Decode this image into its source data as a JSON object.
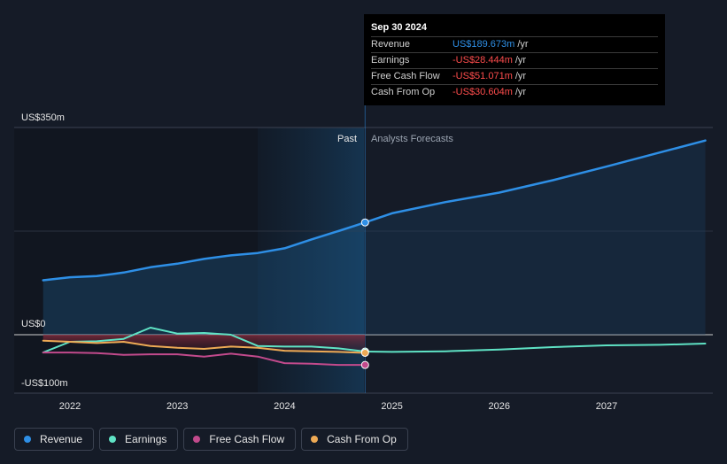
{
  "chart_data": {
    "type": "line",
    "y_unit_labels": [
      "US$350m",
      "US$0",
      "-US$100m"
    ],
    "ylim": [
      -100,
      350
    ],
    "x_ticks": [
      "2022",
      "2023",
      "2024",
      "2025",
      "2026",
      "2027"
    ],
    "region_labels": {
      "past": "Past",
      "forecast": "Analysts Forecasts"
    },
    "divider_x": 2024.75,
    "series": [
      {
        "name": "Revenue",
        "color": "#2e8fe6",
        "points": [
          [
            2021.75,
            92
          ],
          [
            2022.0,
            97
          ],
          [
            2022.25,
            99
          ],
          [
            2022.5,
            105
          ],
          [
            2022.75,
            114
          ],
          [
            2023.0,
            120
          ],
          [
            2023.25,
            128
          ],
          [
            2023.5,
            134
          ],
          [
            2023.75,
            138
          ],
          [
            2024.0,
            146
          ],
          [
            2024.25,
            161
          ],
          [
            2024.5,
            175
          ],
          [
            2024.75,
            189.673
          ]
        ]
      },
      {
        "name": "Revenue forecast",
        "color": "#2e8fe6",
        "points": [
          [
            2024.75,
            189.673
          ],
          [
            2025.0,
            205
          ],
          [
            2025.5,
            224
          ],
          [
            2026.0,
            240
          ],
          [
            2026.5,
            261
          ],
          [
            2027.0,
            284
          ],
          [
            2027.5,
            308
          ],
          [
            2027.92,
            328
          ]
        ]
      },
      {
        "name": "Earnings",
        "color": "#5fe3c5",
        "points": [
          [
            2021.75,
            -30
          ],
          [
            2022.0,
            -12
          ],
          [
            2022.25,
            -11
          ],
          [
            2022.5,
            -7
          ],
          [
            2022.75,
            12
          ],
          [
            2023.0,
            2
          ],
          [
            2023.25,
            3
          ],
          [
            2023.5,
            0
          ],
          [
            2023.75,
            -19
          ],
          [
            2024.0,
            -20
          ],
          [
            2024.25,
            -20
          ],
          [
            2024.5,
            -23
          ],
          [
            2024.75,
            -28.444
          ]
        ]
      },
      {
        "name": "Earnings forecast",
        "color": "#5fe3c5",
        "points": [
          [
            2024.75,
            -28.444
          ],
          [
            2025.0,
            -29
          ],
          [
            2025.5,
            -28
          ],
          [
            2026.0,
            -25
          ],
          [
            2026.5,
            -21
          ],
          [
            2027.0,
            -18
          ],
          [
            2027.5,
            -17
          ],
          [
            2027.92,
            -15
          ]
        ]
      },
      {
        "name": "Free Cash Flow",
        "color": "#c24a8c",
        "points": [
          [
            2021.75,
            -30
          ],
          [
            2022.0,
            -30
          ],
          [
            2022.25,
            -31
          ],
          [
            2022.5,
            -34
          ],
          [
            2022.75,
            -33
          ],
          [
            2023.0,
            -33
          ],
          [
            2023.25,
            -37
          ],
          [
            2023.5,
            -32
          ],
          [
            2023.75,
            -37
          ],
          [
            2024.0,
            -48
          ],
          [
            2024.25,
            -49
          ],
          [
            2024.5,
            -51
          ],
          [
            2024.75,
            -51.071
          ]
        ]
      },
      {
        "name": "Cash From Op",
        "color": "#eeaa55",
        "points": [
          [
            2021.75,
            -10
          ],
          [
            2022.0,
            -12
          ],
          [
            2022.25,
            -14
          ],
          [
            2022.5,
            -12
          ],
          [
            2022.75,
            -19
          ],
          [
            2023.0,
            -22
          ],
          [
            2023.25,
            -24
          ],
          [
            2023.5,
            -20
          ],
          [
            2023.75,
            -22
          ],
          [
            2024.0,
            -27
          ],
          [
            2024.25,
            -28
          ],
          [
            2024.5,
            -29
          ],
          [
            2024.75,
            -30.604
          ]
        ]
      }
    ]
  },
  "tooltip": {
    "date": "Sep 30 2024",
    "rows": [
      {
        "label": "Revenue",
        "value": "US$189.673m",
        "unit": "/yr",
        "color": "#2e8fe6"
      },
      {
        "label": "Earnings",
        "value": "-US$28.444m",
        "unit": "/yr",
        "color": "#ff4d4d"
      },
      {
        "label": "Free Cash Flow",
        "value": "-US$51.071m",
        "unit": "/yr",
        "color": "#ff4d4d"
      },
      {
        "label": "Cash From Op",
        "value": "-US$30.604m",
        "unit": "/yr",
        "color": "#ff4d4d"
      }
    ]
  },
  "legend": [
    {
      "label": "Revenue",
      "color": "#2e8fe6"
    },
    {
      "label": "Earnings",
      "color": "#5fe3c5"
    },
    {
      "label": "Free Cash Flow",
      "color": "#c24a8c"
    },
    {
      "label": "Cash From Op",
      "color": "#eeaa55"
    }
  ]
}
